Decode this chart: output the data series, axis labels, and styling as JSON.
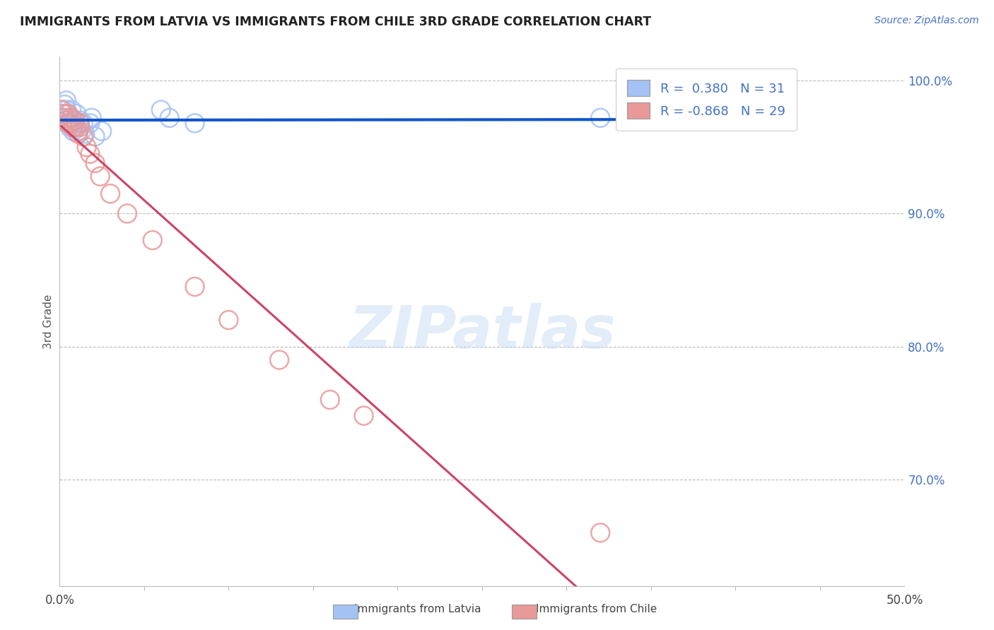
{
  "title": "IMMIGRANTS FROM LATVIA VS IMMIGRANTS FROM CHILE 3RD GRADE CORRELATION CHART",
  "source": "Source: ZipAtlas.com",
  "ylabel": "3rd Grade",
  "watermark": "ZIPatlas",
  "latvia_color": "#a4c2f4",
  "chile_color": "#ea9999",
  "latvia_trend_color": "#1155cc",
  "chile_trend_color": "#cc4466",
  "R_latvia": 0.38,
  "N_latvia": 31,
  "R_chile": -0.868,
  "N_chile": 29,
  "xlim": [
    0.0,
    0.5
  ],
  "ylim": [
    0.62,
    1.018
  ],
  "ytick_positions": [
    0.7,
    0.8,
    0.9,
    1.0
  ],
  "ytick_labels": [
    "70.0%",
    "80.0%",
    "90.0%",
    "100.0%"
  ],
  "latvia_x": [
    0.001,
    0.002,
    0.003,
    0.003,
    0.004,
    0.004,
    0.005,
    0.005,
    0.005,
    0.006,
    0.006,
    0.007,
    0.007,
    0.008,
    0.008,
    0.009,
    0.01,
    0.01,
    0.011,
    0.012,
    0.013,
    0.014,
    0.015,
    0.018,
    0.019,
    0.021,
    0.025,
    0.06,
    0.065,
    0.08,
    0.32
  ],
  "latvia_y": [
    0.972,
    0.978,
    0.982,
    0.975,
    0.985,
    0.978,
    0.972,
    0.968,
    0.975,
    0.965,
    0.972,
    0.968,
    0.978,
    0.962,
    0.97,
    0.968,
    0.975,
    0.965,
    0.962,
    0.97,
    0.962,
    0.968,
    0.96,
    0.968,
    0.972,
    0.958,
    0.962,
    0.978,
    0.972,
    0.968,
    0.972
  ],
  "chile_x": [
    0.001,
    0.002,
    0.003,
    0.004,
    0.005,
    0.006,
    0.007,
    0.008,
    0.009,
    0.01,
    0.011,
    0.012,
    0.014,
    0.016,
    0.018,
    0.021,
    0.024,
    0.03,
    0.04,
    0.055,
    0.08,
    0.1,
    0.13,
    0.16,
    0.18,
    0.005,
    0.008,
    0.012,
    0.32
  ],
  "chile_y": [
    0.978,
    0.975,
    0.972,
    0.97,
    0.975,
    0.968,
    0.972,
    0.965,
    0.97,
    0.965,
    0.96,
    0.968,
    0.958,
    0.95,
    0.945,
    0.938,
    0.928,
    0.915,
    0.9,
    0.88,
    0.845,
    0.82,
    0.79,
    0.76,
    0.748,
    0.968,
    0.965,
    0.965,
    0.66
  ]
}
